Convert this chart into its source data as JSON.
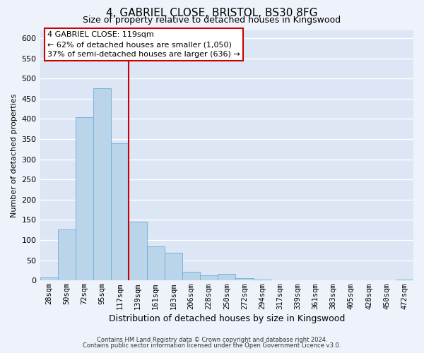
{
  "title1": "4, GABRIEL CLOSE, BRISTOL, BS30 8FG",
  "title2": "Size of property relative to detached houses in Kingswood",
  "xlabel": "Distribution of detached houses by size in Kingswood",
  "ylabel": "Number of detached properties",
  "bar_labels": [
    "28sqm",
    "50sqm",
    "72sqm",
    "95sqm",
    "117sqm",
    "139sqm",
    "161sqm",
    "183sqm",
    "206sqm",
    "228sqm",
    "250sqm",
    "272sqm",
    "294sqm",
    "317sqm",
    "339sqm",
    "361sqm",
    "383sqm",
    "405sqm",
    "428sqm",
    "450sqm",
    "472sqm"
  ],
  "bar_values": [
    8,
    127,
    405,
    475,
    340,
    145,
    85,
    68,
    22,
    12,
    16,
    5,
    2,
    1,
    1,
    1,
    0,
    0,
    1,
    0,
    2
  ],
  "bar_color": "#bad4ea",
  "bar_edge_color": "#6baed6",
  "vline_x": 4.5,
  "vline_color": "#cc0000",
  "ylim": [
    0,
    620
  ],
  "yticks": [
    0,
    50,
    100,
    150,
    200,
    250,
    300,
    350,
    400,
    450,
    500,
    550,
    600
  ],
  "annotation_title": "4 GABRIEL CLOSE: 119sqm",
  "annotation_line1": "← 62% of detached houses are smaller (1,050)",
  "annotation_line2": "37% of semi-detached houses are larger (636) →",
  "annotation_box_facecolor": "#ffffff",
  "annotation_box_edgecolor": "#cc0000",
  "footer1": "Contains HM Land Registry data © Crown copyright and database right 2024.",
  "footer2": "Contains public sector information licensed under the Open Government Licence v3.0.",
  "bg_color": "#eef2fa",
  "plot_bg_color": "#dde6f5",
  "grid_color": "#ffffff",
  "title1_fontsize": 11,
  "title2_fontsize": 9,
  "ylabel_fontsize": 8,
  "xlabel_fontsize": 9,
  "tick_fontsize": 7.5,
  "ytick_fontsize": 8
}
